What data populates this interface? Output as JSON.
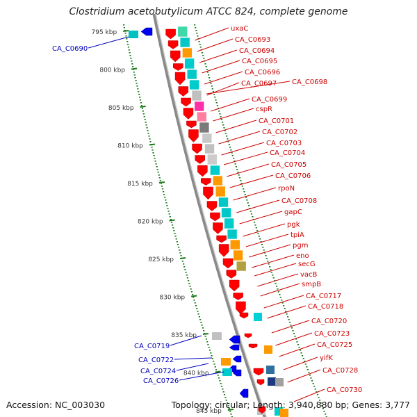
{
  "title": "Clostridium acetobutylicum ATCC 824, complete genome",
  "accession": "Accession: NC_003030",
  "summary": "Topology: circular; Length: 3,940,880 bp; Genes: 3,777",
  "colors": {
    "forward_gene": "#ff0000",
    "reverse_gene": "#0000ee",
    "label_forward": "#cc0000",
    "label_reverse": "#0000bb",
    "scale": "#1a7a1a",
    "backbone": "#8a8a8a"
  },
  "scale_ticks": [
    "795 kbp",
    "800 kbp",
    "805 kbp",
    "810 kbp",
    "815 kbp",
    "820 kbp",
    "825 kbp",
    "830 kbp",
    "835 kbp",
    "840 kbp",
    "845 kbp"
  ],
  "right_labels": [
    "uxaC",
    "CA_C0693",
    "CA_C0694",
    "CA_C0695",
    "CA_C0696",
    "CA_C0697",
    "CA_C0698",
    "CA_C0699",
    "cspR",
    "CA_C0701",
    "CA_C0702",
    "CA_C0703",
    "CA_C0704",
    "CA_C0705",
    "CA_C0706",
    "rpoN",
    "CA_C0708",
    "gapC",
    "pgk",
    "tpiA",
    "pgm",
    "eno",
    "secG",
    "vacB",
    "smpB",
    "CA_C0717",
    "CA_C0718",
    "CA_C0720",
    "CA_C0723",
    "CA_C0725",
    "yifK",
    "CA_C0728",
    "CA_C0730"
  ],
  "left_labels": [
    "CA_C0690",
    "CA_C0719",
    "CA_C0722",
    "CA_C0724",
    "CA_C0726"
  ],
  "legend": []
}
